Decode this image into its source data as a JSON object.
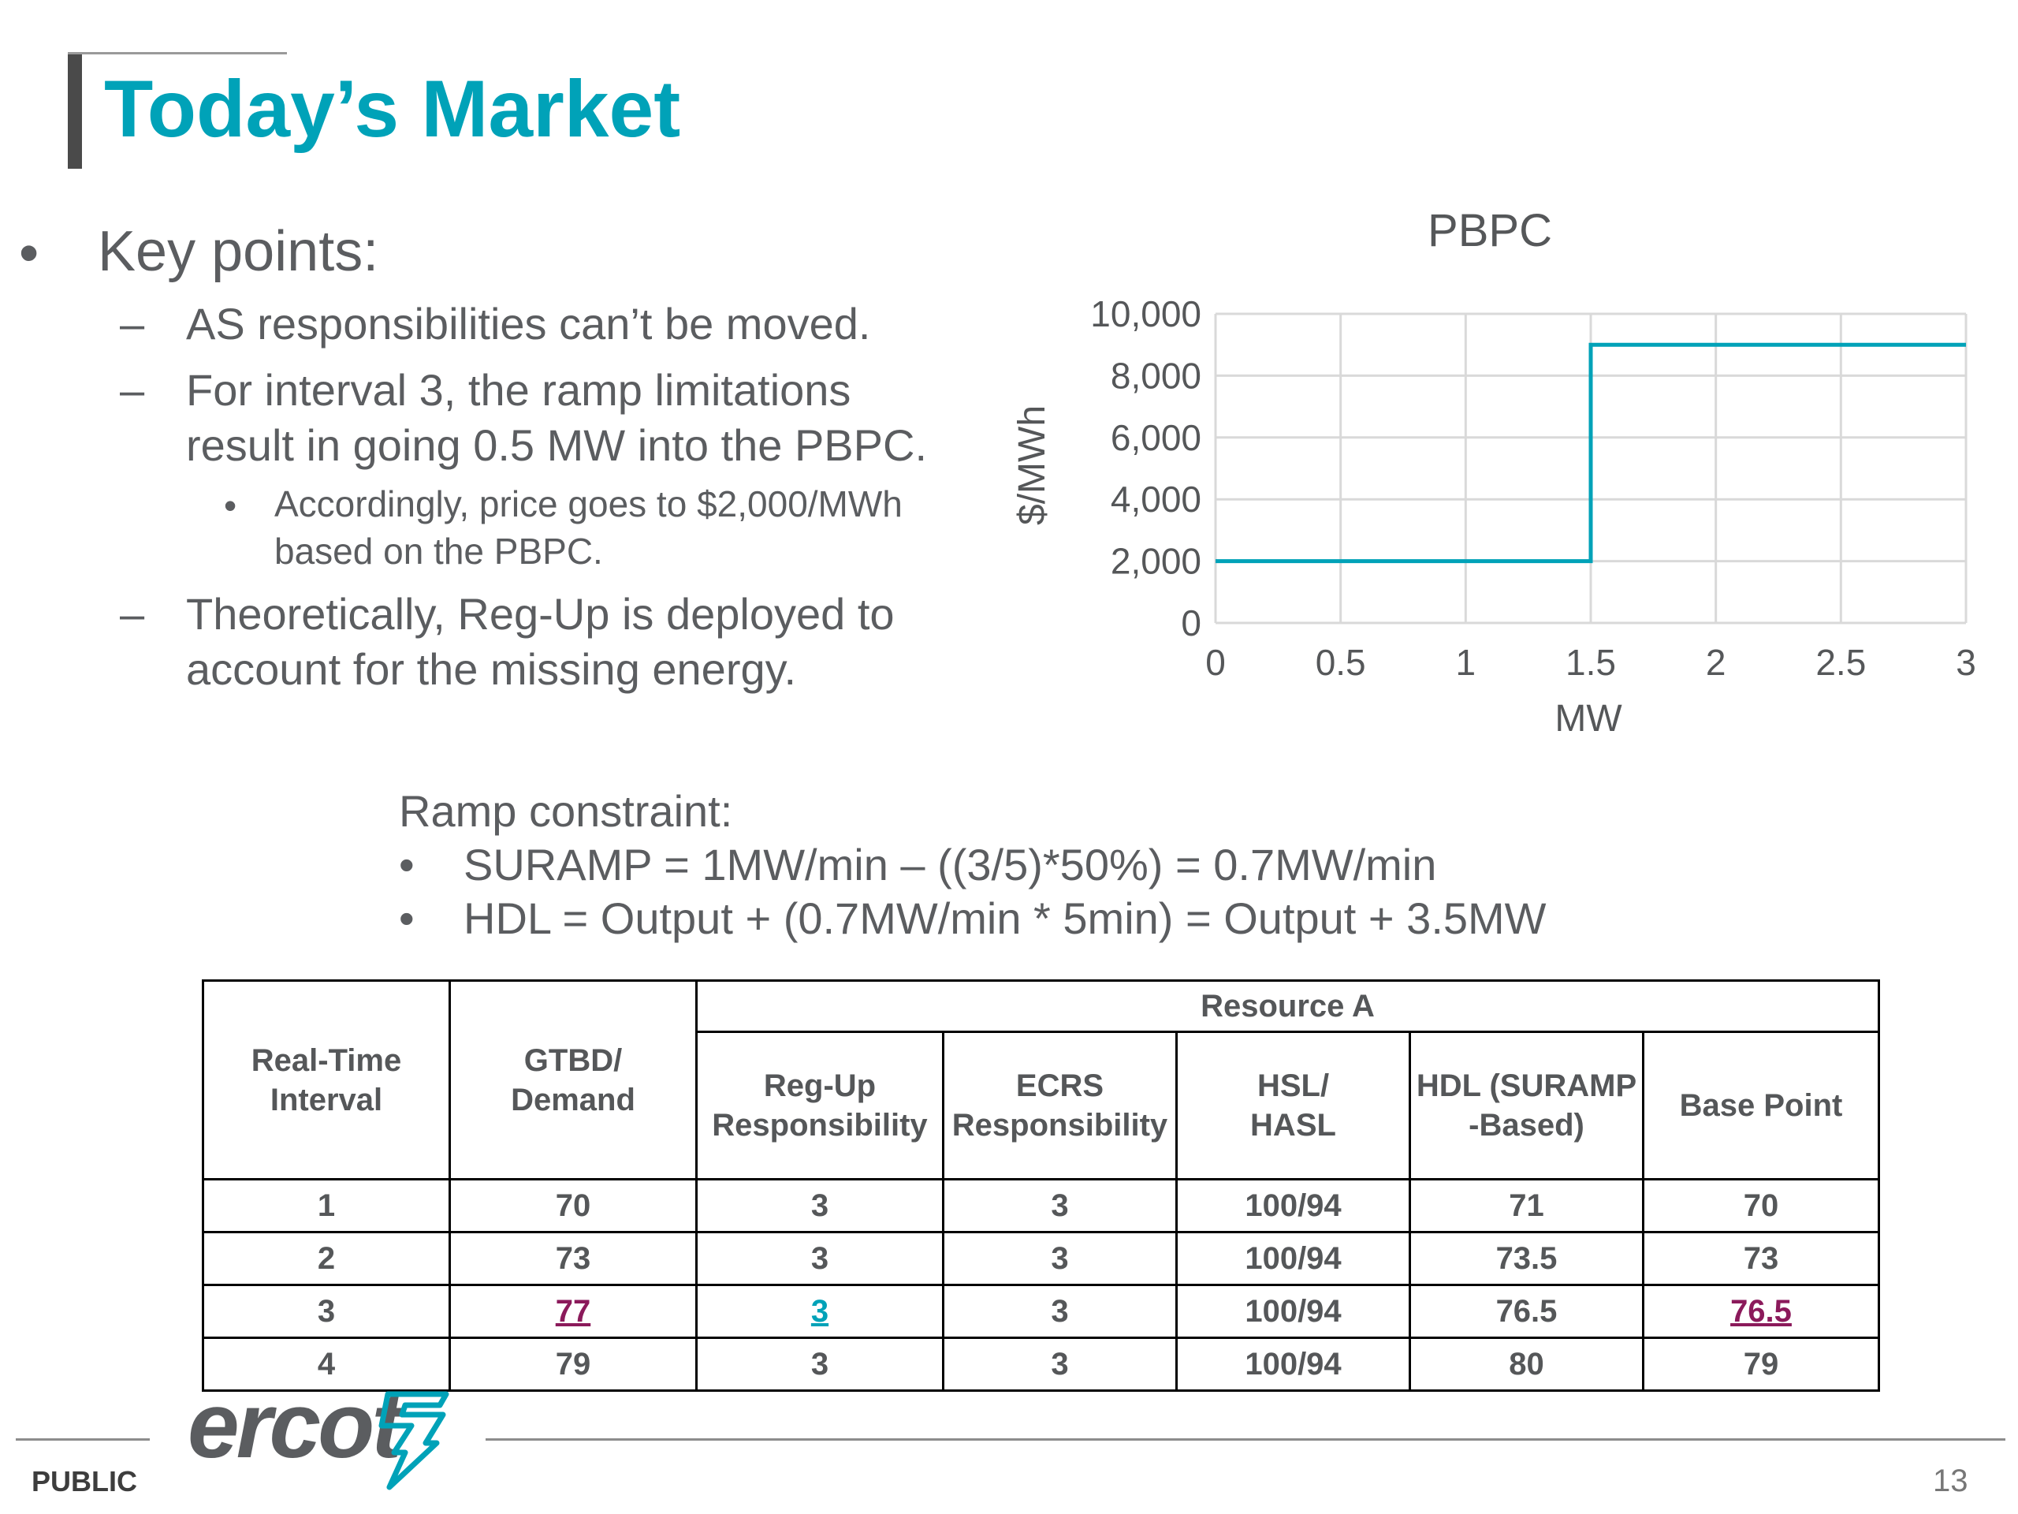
{
  "title": "Today’s Market",
  "bullets": {
    "key_points": "Key points:",
    "item1": "AS responsibilities can’t be moved.",
    "item2_line1": "For interval 3, the ramp limitations",
    "item2_line2": "result in going 0.5 MW into the PBPC.",
    "sub_line1": "Accordingly, price goes to $2,000/MWh",
    "sub_line2": "based on the PBPC.",
    "item3_line1": "Theoretically, Reg-Up is deployed to",
    "item3_line2": "account for the missing energy.",
    "bullet_glyph": "•",
    "dash_glyph": "–"
  },
  "ramp": {
    "heading": "Ramp constraint:",
    "line1": "SURAMP = 1MW/min – ((3/5)*50%) = 0.7MW/min",
    "line2": "HDL =  Output + (0.7MW/min * 5min) = Output + 3.5MW"
  },
  "chart_data": {
    "type": "line",
    "title": "PBPC",
    "xlabel": "MW",
    "ylabel": "$/MWh",
    "xlim": [
      0,
      3
    ],
    "ylim": [
      0,
      10000
    ],
    "x_ticks": [
      "0",
      "0.5",
      "1",
      "1.5",
      "2",
      "2.5",
      "3"
    ],
    "y_ticks": [
      "0",
      "2,000",
      "4,000",
      "6,000",
      "8,000",
      "10,000"
    ],
    "x_tick_values": [
      0,
      0.5,
      1,
      1.5,
      2,
      2.5,
      3
    ],
    "y_tick_values": [
      0,
      2000,
      4000,
      6000,
      8000,
      10000
    ],
    "grid": true,
    "line_color": "#00a2b8",
    "series": [
      {
        "x": [
          0,
          1.5,
          1.5,
          3
        ],
        "y": [
          2000,
          2000,
          9000,
          9000
        ]
      }
    ]
  },
  "table": {
    "group_header": "Resource A",
    "headers": {
      "interval": [
        "Real-Time",
        "Interval"
      ],
      "demand": [
        "GTBD/",
        "Demand"
      ],
      "regup": [
        "Reg-Up",
        "Responsibility"
      ],
      "ecrs": [
        "ECRS",
        "Responsibility"
      ],
      "hsl": [
        "HSL/",
        "HASL"
      ],
      "hdl": [
        "HDL (SURAMP",
        "-Based)"
      ],
      "base": [
        "Base Point"
      ]
    },
    "rows": [
      [
        "1",
        "70",
        "3",
        "3",
        "100/94",
        "71",
        "70"
      ],
      [
        "2",
        "73",
        "3",
        "3",
        "100/94",
        "73.5",
        "73"
      ],
      [
        "3",
        "77",
        "3",
        "3",
        "100/94",
        "76.5",
        "76.5"
      ],
      [
        "4",
        "79",
        "3",
        "3",
        "100/94",
        "80",
        "79"
      ]
    ],
    "highlight_purple": "#8b1a5b",
    "highlight_teal": "#00a2b8"
  },
  "footer": {
    "logo": "ercot",
    "public": "PUBLIC",
    "page_number": "13"
  }
}
